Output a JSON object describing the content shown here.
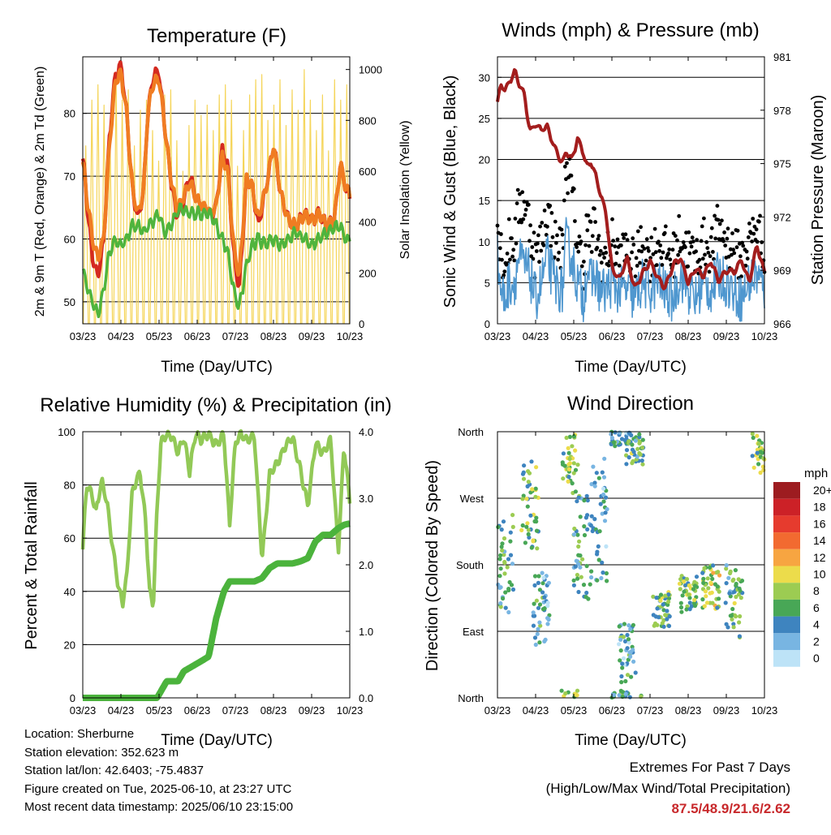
{
  "months": [
    "03/23",
    "04/23",
    "05/23",
    "06/23",
    "07/23",
    "08/23",
    "09/23",
    "10/23"
  ],
  "temperature_panel": {
    "title": "Temperature (F)",
    "ylabel_left": "2m & 9m T (Red, Orange) & 2m Td (Green)",
    "ylabel_right": "Solar Insolation (Yellow)",
    "xlabel": "Time (Day/UTC)",
    "left_ticks": [
      "50",
      "60",
      "70",
      "80"
    ],
    "right_ticks": [
      "0",
      "200",
      "400",
      "600",
      "800",
      "1000"
    ]
  },
  "wind_panel": {
    "title": "Winds (mph) & Pressure (mb)",
    "ylabel_left": "Sonic Wind & Gust (Blue, Black)",
    "ylabel_right": "Station Pressure (Maroon)",
    "xlabel": "Time (Day/UTC)",
    "left_ticks": [
      "0",
      "5",
      "10",
      "15",
      "20",
      "25",
      "30"
    ],
    "right_ticks": [
      "966",
      "969",
      "972",
      "975",
      "978",
      "981"
    ]
  },
  "rh_panel": {
    "title": "Relative Humidity (%) & Precipitation (in)",
    "ylabel_left": "Percent & Total Rainfall",
    "xlabel": "Time (Day/UTC)",
    "left_ticks": [
      "0",
      "20",
      "40",
      "60",
      "80",
      "100"
    ],
    "right_ticks": [
      "0.0",
      "1.0",
      "2.0",
      "3.0",
      "4.0"
    ]
  },
  "direction_panel": {
    "title": "Wind Direction",
    "ylabel": "Direction (Colored By Speed)",
    "xlabel": "Time (Day/UTC)",
    "dir_ticks": [
      "North",
      "East",
      "South",
      "West",
      "North"
    ],
    "legend_unit": "mph",
    "legend_labels": [
      "20+",
      "18",
      "16",
      "14",
      "12",
      "10",
      "8",
      "6",
      "4",
      "2",
      "0"
    ],
    "legend_colors": [
      "#9d1c20",
      "#cc2127",
      "#e63b2e",
      "#f26a30",
      "#f7a541",
      "#ecdc4b",
      "#9ccc52",
      "#48a756",
      "#3e84bf",
      "#78b5e2",
      "#bde3f7"
    ]
  },
  "footer": {
    "location": "Location: Sherburne",
    "elevation": "Station elevation: 352.623 m",
    "latlon": "Station lat/lon: 42.6403; -75.4837",
    "created": "Figure created on Tue, 2025-06-10, at 23:27 UTC",
    "recent": "Most recent data timestamp: 2025/06/10 23:15:00"
  },
  "extremes": {
    "title": "Extremes For Past 7 Days",
    "subtitle": "(High/Low/Max Wind/Total Precipitation)",
    "values": "87.5/48.9/21.6/2.62"
  },
  "chart_data": [
    {
      "type": "line",
      "title": "Temperature (F)",
      "xlabel": "Time (Day/UTC)",
      "ylabel": "2m & 9m T (Red, Orange) & 2m Td (Green)",
      "y2label": "Solar Insolation (Yellow)",
      "ylim": [
        46.5,
        89
      ],
      "y2lim": [
        0,
        1050
      ],
      "x": [
        0,
        0.25,
        0.4,
        0.55,
        0.7,
        0.85,
        1.0,
        1.15,
        1.3,
        1.45,
        1.6,
        1.7,
        1.85,
        2.0,
        2.15,
        2.3,
        2.45,
        2.6,
        2.8,
        3.0,
        3.2,
        3.35,
        3.5,
        3.65,
        3.8,
        3.95,
        4.1,
        4.3,
        4.45,
        4.6,
        4.8,
        5.0,
        5.2,
        5.4,
        5.6,
        5.8,
        6.0,
        6.2,
        6.4,
        6.6,
        6.75,
        6.9,
        7.0
      ],
      "series": [
        {
          "name": "2m T",
          "color": "#d42a20",
          "values": [
            73,
            57,
            54,
            60,
            76,
            86,
            87.5,
            80,
            68,
            63,
            68,
            80,
            86,
            86.5,
            78,
            70,
            64,
            65,
            70,
            66,
            65,
            64,
            65,
            74,
            72,
            58,
            52,
            70,
            68,
            62,
            68,
            75,
            67,
            63,
            62,
            64,
            63,
            64,
            62,
            63,
            72,
            68,
            67
          ]
        },
        {
          "name": "9m T",
          "color": "#f07c22",
          "values": [
            72,
            60,
            57,
            60,
            75,
            85,
            86.5,
            80,
            68,
            64,
            68,
            80,
            85,
            85.5,
            78,
            70,
            65,
            66,
            69,
            66,
            65,
            64,
            65,
            73,
            71,
            59,
            54,
            70,
            68,
            63,
            68,
            75,
            67,
            63,
            62,
            64,
            63,
            64,
            62,
            63,
            72,
            68,
            67
          ]
        },
        {
          "name": "2m Td",
          "color": "#4fb43d",
          "values": [
            55,
            50,
            48,
            52,
            58,
            60,
            59,
            60,
            62,
            62,
            61,
            62,
            63,
            64,
            61,
            62,
            64,
            65,
            64,
            64,
            64,
            64,
            62,
            60,
            58,
            52,
            49,
            56,
            59,
            60,
            59,
            60,
            59,
            60,
            61,
            60,
            59,
            60,
            61,
            62,
            62,
            60,
            60
          ]
        }
      ],
      "solar": {
        "name": "Solar Insolation",
        "color": "#f5d55a",
        "daily_peaks": [
          700,
          880,
          940,
          860,
          760,
          960,
          880,
          920,
          700,
          840,
          880,
          760,
          640,
          900,
          920,
          720,
          600,
          780,
          880,
          820,
          860,
          760,
          900,
          940,
          880,
          620,
          760,
          900,
          960,
          980,
          800,
          860,
          960,
          780,
          920,
          840,
          1000,
          880,
          760,
          900,
          680,
          960,
          880,
          940
        ]
      }
    },
    {
      "type": "line",
      "title": "Winds (mph) & Pressure (mb)",
      "xlabel": "Time (Day/UTC)",
      "ylabel": "Sonic Wind & Gust (Blue, Black)",
      "y2label": "Station Pressure (Maroon)",
      "ylim": [
        0,
        32.5
      ],
      "y2lim": [
        966,
        981
      ],
      "x": [
        0,
        0.1,
        0.2,
        0.3,
        0.45,
        0.55,
        0.7,
        0.85,
        1.0,
        1.15,
        1.3,
        1.5,
        1.7,
        1.8,
        1.95,
        2.1,
        2.25,
        2.35,
        2.45,
        2.55,
        2.7,
        2.85,
        3.0,
        3.2,
        3.4,
        3.6,
        3.8,
        4.0,
        4.2,
        4.4,
        4.6,
        4.8,
        5.0,
        5.2,
        5.4,
        5.6,
        5.8,
        6.0,
        6.2,
        6.4,
        6.6,
        6.8,
        7.0
      ],
      "series": [
        {
          "name": "Sonic Wind",
          "color": "#4f97cf",
          "values": [
            8,
            4,
            3,
            5,
            5,
            8,
            7,
            6,
            3,
            5,
            8,
            5,
            4,
            10,
            8,
            5,
            3,
            7,
            5,
            6,
            4,
            4,
            5,
            4,
            4,
            3,
            5,
            4,
            5,
            4,
            3,
            6,
            4,
            3,
            5,
            4,
            6,
            5,
            4,
            3,
            5,
            6,
            4
          ]
        },
        {
          "name": "Gust",
          "color": "#000000",
          "values": [
            12,
            9,
            7,
            10,
            10,
            14,
            15,
            12,
            8,
            10,
            14,
            10,
            9,
            20,
            16,
            10,
            7,
            12,
            10,
            12,
            8,
            8,
            10,
            8,
            9,
            7,
            10,
            8,
            10,
            9,
            8,
            11,
            9,
            8,
            10,
            9,
            12,
            10,
            9,
            8,
            10,
            12,
            9
          ]
        },
        {
          "name": "Station Pressure",
          "color": "#a31d1d",
          "values": [
            978.5,
            979.4,
            979.2,
            979.5,
            980.2,
            979.6,
            978.9,
            976.8,
            977.2,
            976.9,
            977.1,
            975.9,
            975.0,
            975.7,
            975.2,
            976.4,
            975.6,
            974.8,
            975.1,
            974.5,
            973.3,
            972.2,
            969.1,
            968.5,
            969.7,
            968.0,
            968.8,
            969.5,
            968.6,
            968.0,
            969.3,
            969.7,
            968.3,
            969.1,
            968.7,
            969.5,
            968.4,
            969.0,
            968.9,
            969.6,
            968.3,
            970.4,
            968.9
          ]
        }
      ]
    },
    {
      "type": "line",
      "title": "Relative Humidity (%) & Precipitation (in)",
      "xlabel": "Time (Day/UTC)",
      "ylabel": "Percent & Total Rainfall",
      "ylim": [
        0,
        100
      ],
      "y2lim": [
        0,
        4
      ],
      "x": [
        0,
        0.1,
        0.2,
        0.35,
        0.5,
        0.65,
        0.8,
        0.95,
        1.05,
        1.15,
        1.3,
        1.5,
        1.65,
        1.75,
        1.85,
        1.95,
        2.05,
        2.2,
        2.35,
        2.5,
        2.65,
        2.8,
        2.95,
        3.1,
        3.3,
        3.5,
        3.7,
        3.85,
        4.0,
        4.15,
        4.3,
        4.5,
        4.7,
        4.9,
        5.1,
        5.3,
        5.5,
        5.7,
        5.9,
        6.1,
        6.3,
        6.5,
        6.7,
        6.85,
        7.0
      ],
      "series": [
        {
          "name": "Relative Humidity",
          "color": "#92c957",
          "values": [
            56,
            80,
            78,
            70,
            82,
            72,
            55,
            40,
            36,
            45,
            78,
            85,
            66,
            40,
            35,
            72,
            96,
            99,
            98,
            92,
            98,
            85,
            99,
            97,
            99,
            95,
            99,
            65,
            96,
            99,
            97,
            98,
            52,
            84,
            88,
            94,
            98,
            86,
            72,
            96,
            92,
            97,
            55,
            95,
            74
          ]
        },
        {
          "name": "Total Precipitation",
          "color": "#4bb33c",
          "values": [
            0,
            0,
            0,
            0,
            0,
            0,
            0,
            0,
            0,
            0,
            0,
            0,
            0,
            0,
            0,
            0,
            0.1,
            0.25,
            0.25,
            0.25,
            0.4,
            0.45,
            0.5,
            0.55,
            0.62,
            1.2,
            1.6,
            1.75,
            1.75,
            1.75,
            1.75,
            1.75,
            1.8,
            1.95,
            2.02,
            2.02,
            2.02,
            2.05,
            2.1,
            2.35,
            2.45,
            2.45,
            2.55,
            2.6,
            2.62
          ]
        }
      ]
    },
    {
      "type": "scatter",
      "title": "Wind Direction",
      "xlabel": "Time (Day/UTC)",
      "ylabel": "Direction (Colored By Speed)",
      "ylim": [
        0,
        360
      ],
      "yticks": [
        "North",
        "East",
        "South",
        "West",
        "North"
      ],
      "color_scale_mph": [
        0,
        2,
        4,
        6,
        8,
        10,
        12,
        14,
        16,
        18,
        20
      ],
      "clusters": [
        {
          "x": 0.2,
          "dir": 180,
          "spread": 70,
          "speed": 5
        },
        {
          "x": 0.85,
          "dir": 260,
          "spread": 60,
          "speed": 7
        },
        {
          "x": 1.15,
          "dir": 120,
          "spread": 50,
          "speed": 4
        },
        {
          "x": 1.9,
          "dir": 330,
          "spread": 40,
          "speed": 8
        },
        {
          "x": 2.2,
          "dir": 200,
          "spread": 80,
          "speed": 5
        },
        {
          "x": 2.65,
          "dir": 240,
          "spread": 90,
          "speed": 4
        },
        {
          "x": 3.2,
          "dir": 355,
          "spread": 15,
          "speed": 4
        },
        {
          "x": 3.6,
          "dir": 340,
          "spread": 25,
          "speed": 6
        },
        {
          "x": 3.4,
          "dir": 60,
          "spread": 40,
          "speed": 4
        },
        {
          "x": 4.3,
          "dir": 120,
          "spread": 25,
          "speed": 6
        },
        {
          "x": 5.0,
          "dir": 140,
          "spread": 25,
          "speed": 7
        },
        {
          "x": 5.6,
          "dir": 150,
          "spread": 30,
          "speed": 8
        },
        {
          "x": 6.2,
          "dir": 130,
          "spread": 50,
          "speed": 6
        },
        {
          "x": 6.9,
          "dir": 330,
          "spread": 30,
          "speed": 8
        }
      ]
    }
  ]
}
